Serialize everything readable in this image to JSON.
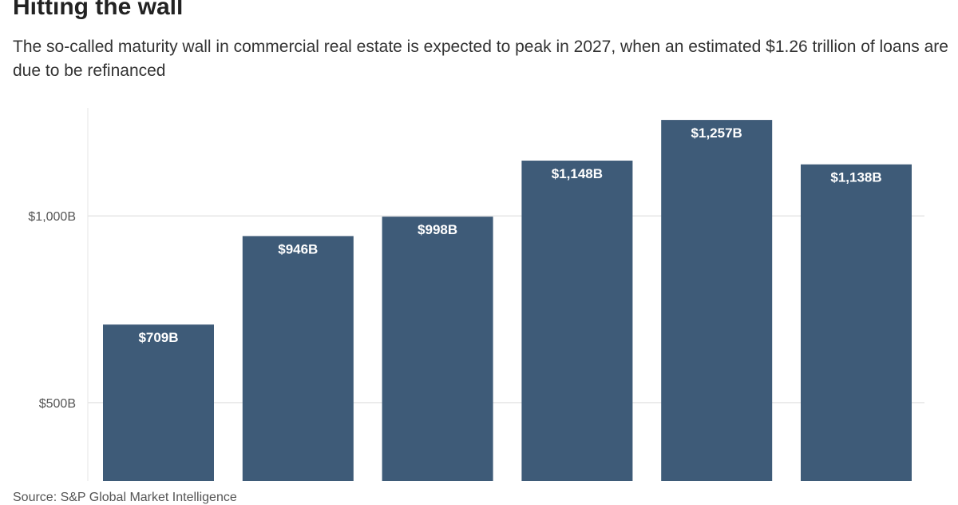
{
  "chart_data": {
    "type": "bar",
    "title": "Hitting the wall",
    "subtitle": "The so-called maturity wall in commercial real estate is expected to peak in 2027, when an estimated $1.26 trillion of loans are due to be refinanced",
    "xlabel": "",
    "ylabel": "",
    "categories": [
      "",
      "",
      "",
      "",
      "",
      ""
    ],
    "values": [
      709,
      946,
      998,
      1148,
      1257,
      1138
    ],
    "data_labels": [
      "$709B",
      "$946B",
      "$998B",
      "$1,148B",
      "$1,257B",
      "$1,138B"
    ],
    "y_ticks": [
      {
        "value": 500,
        "label": "$500B"
      },
      {
        "value": 1000,
        "label": "$1,000B"
      }
    ],
    "ylim": [
      290,
      1300
    ],
    "grid": true,
    "bar_color": "#3e5b78",
    "gridline_color": "#e6e6e6",
    "source": "Source: S&P Global Market Intelligence"
  }
}
